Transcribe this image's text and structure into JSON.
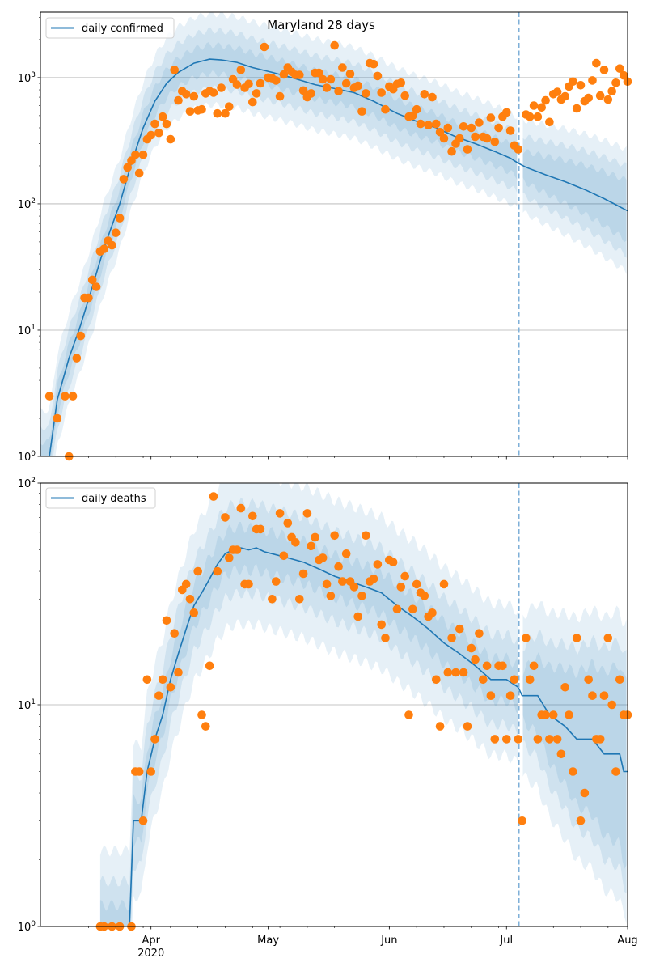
{
  "title": "Maryland 28 days",
  "colors": {
    "model_line": "#1f77b4",
    "observed_points": "#ff7f0e",
    "band_fill": "#1f77b4",
    "forecast_marker": "#7fb0d8",
    "grid": "#b0b0b0"
  },
  "x_axis": {
    "xlim": [
      0.7,
      151
    ],
    "major_ticks": [
      {
        "day": 29,
        "label": "Apr",
        "sublabel": "2020"
      },
      {
        "day": 59,
        "label": "May",
        "sublabel": ""
      },
      {
        "day": 90,
        "label": "Jun",
        "sublabel": ""
      },
      {
        "day": 120,
        "label": "Jul",
        "sublabel": ""
      },
      {
        "day": 151,
        "label": "Aug",
        "sublabel": ""
      }
    ],
    "minor_tick_start_day": 6,
    "minor_tick_step_days": 7,
    "forecast_start_day": 123.2
  },
  "chart_data": [
    {
      "type": "line+scatter",
      "title": "Maryland 28 days",
      "legend": {
        "label": "daily confirmed",
        "placement": "top-left"
      },
      "yscale": "log",
      "ylim": [
        1,
        3300
      ],
      "yticks": [
        {
          "value": 1,
          "base": "10",
          "exp": "0"
        },
        {
          "value": 10,
          "base": "10",
          "exp": "1"
        },
        {
          "value": 100,
          "base": "10",
          "exp": "2"
        },
        {
          "value": 1000,
          "base": "10",
          "exp": "3"
        }
      ],
      "show_x_labels": false,
      "grid": true,
      "model_median": [
        [
          0.7,
          1
        ],
        [
          3,
          1
        ],
        [
          5,
          2.8
        ],
        [
          8,
          6
        ],
        [
          11,
          11
        ],
        [
          14,
          22
        ],
        [
          17,
          45
        ],
        [
          21,
          100
        ],
        [
          24,
          210
        ],
        [
          27,
          400
        ],
        [
          30,
          650
        ],
        [
          33,
          900
        ],
        [
          36,
          1100
        ],
        [
          40,
          1300
        ],
        [
          44,
          1400
        ],
        [
          47,
          1380
        ],
        [
          51,
          1320
        ],
        [
          55,
          1200
        ],
        [
          60,
          1100
        ],
        [
          65,
          1000
        ],
        [
          71,
          880
        ],
        [
          76,
          820
        ],
        [
          81,
          760
        ],
        [
          86,
          650
        ],
        [
          92,
          520
        ],
        [
          97,
          450
        ],
        [
          102,
          400
        ],
        [
          107,
          340
        ],
        [
          112,
          300
        ],
        [
          117,
          260
        ],
        [
          121,
          230
        ],
        [
          123,
          210
        ],
        [
          125,
          195
        ],
        [
          130,
          170
        ],
        [
          135,
          150
        ],
        [
          140,
          130
        ],
        [
          145,
          110
        ],
        [
          151,
          88
        ]
      ],
      "band_factors": [
        2.3,
        1.7,
        1.3
      ],
      "forecast_band_growth_per_day": 0.012,
      "observed": [
        {
          "days": [
            3,
            5,
            7,
            8,
            9,
            10,
            11
          ],
          "values": [
            3,
            2,
            3,
            1,
            3,
            6,
            9
          ]
        },
        {
          "start_day": 12,
          "values": [
            18,
            18,
            25,
            22,
            42,
            44,
            51,
            47,
            59,
            77,
            157,
            194,
            220,
            245,
            175,
            245,
            325,
            350,
            430,
            365,
            490,
            430,
            325,
            1150,
            660,
            780,
            740,
            540,
            710,
            550,
            560,
            750,
            780,
            760,
            520,
            830,
            520,
            590,
            970,
            880,
            1150,
            830,
            890,
            640,
            750,
            900,
            1750,
            1000,
            990,
            950,
            710,
            1060,
            1200,
            1110,
            1050,
            1050,
            790,
            700,
            750,
            1090,
            1090,
            970,
            830,
            970,
            1800,
            780,
            1200,
            900,
            1070,
            830,
            860,
            540,
            750,
            1300,
            1280,
            1030,
            760,
            560,
            850,
            810,
            890,
            910,
            720,
            490,
            500,
            560,
            430,
            740,
            420,
            700,
            430,
            370,
            330,
            400,
            260,
            300,
            330,
            410,
            270,
            400,
            340,
            440,
            340,
            330,
            480,
            310,
            400,
            490,
            530,
            380,
            290,
            270
          ]
        },
        {
          "start_day": 125,
          "values": [
            510,
            490,
            600,
            490,
            580,
            660,
            445,
            740,
            770,
            670,
            710,
            850,
            930,
            570,
            870,
            650,
            690,
            950,
            1300,
            720,
            1150,
            670,
            780,
            910,
            1180,
            1040,
            930
          ]
        }
      ]
    },
    {
      "type": "line+scatter",
      "legend": {
        "label": "daily deaths",
        "placement": "top-left"
      },
      "yscale": "log",
      "ylim": [
        1,
        100
      ],
      "yticks": [
        {
          "value": 1,
          "base": "10",
          "exp": "0"
        },
        {
          "value": 10,
          "base": "10",
          "exp": "1"
        },
        {
          "value": 100,
          "base": "10",
          "exp": "2"
        }
      ],
      "show_x_labels": true,
      "grid": true,
      "model_median": [
        [
          16,
          1
        ],
        [
          23.5,
          1
        ],
        [
          24.5,
          3
        ],
        [
          26.5,
          3
        ],
        [
          28,
          5
        ],
        [
          30,
          7
        ],
        [
          32,
          9
        ],
        [
          34,
          13
        ],
        [
          36,
          17
        ],
        [
          38,
          22
        ],
        [
          40,
          28
        ],
        [
          42,
          32
        ],
        [
          44,
          37
        ],
        [
          46,
          43
        ],
        [
          48,
          48
        ],
        [
          50,
          50
        ],
        [
          52,
          51
        ],
        [
          54,
          50
        ],
        [
          56,
          51
        ],
        [
          58,
          49
        ],
        [
          60,
          48
        ],
        [
          64,
          46
        ],
        [
          68,
          44
        ],
        [
          72,
          41
        ],
        [
          76,
          38
        ],
        [
          80,
          36
        ],
        [
          84,
          34
        ],
        [
          88,
          32
        ],
        [
          92,
          28
        ],
        [
          96,
          25
        ],
        [
          100,
          22
        ],
        [
          104,
          19
        ],
        [
          108,
          17
        ],
        [
          112,
          15
        ],
        [
          116,
          13
        ],
        [
          120,
          13
        ],
        [
          123,
          12
        ],
        [
          124,
          11
        ],
        [
          128,
          11
        ],
        [
          131,
          9
        ],
        [
          135,
          8
        ],
        [
          138,
          7
        ],
        [
          142,
          7
        ],
        [
          145,
          6
        ],
        [
          149,
          6
        ],
        [
          150,
          5
        ],
        [
          151,
          5
        ]
      ],
      "band_factors": [
        2.2,
        1.6,
        1.25
      ],
      "forecast_band_growth_per_day": 0.04,
      "observed": [
        {
          "days": [
            16,
            17,
            19,
            21,
            24
          ],
          "values": [
            1,
            1,
            1,
            1,
            1
          ]
        },
        {
          "start_day": 25,
          "values": [
            5,
            5,
            3,
            13,
            5,
            7,
            11,
            13,
            24,
            12,
            21,
            14,
            33,
            35,
            30,
            26,
            40,
            9,
            8,
            15,
            87,
            40
          ]
        },
        {
          "start_day": 48,
          "values": [
            70,
            46,
            50,
            50,
            77,
            35,
            35,
            71,
            62,
            62
          ]
        },
        {
          "start_day": 60,
          "values": [
            30,
            36,
            73,
            47,
            66,
            57,
            54,
            30,
            39,
            73,
            52,
            57,
            45,
            46,
            35,
            31,
            58,
            42,
            36,
            48,
            36,
            34,
            25,
            31,
            58,
            36,
            37,
            43,
            23,
            20,
            45,
            44,
            27,
            34,
            38,
            9,
            27,
            35,
            32,
            31,
            25,
            26,
            13,
            8,
            35,
            14,
            20,
            14,
            22,
            14,
            8,
            18,
            16,
            21,
            13,
            15,
            11,
            7,
            15,
            15,
            7,
            11,
            13,
            7,
            3,
            20,
            13,
            15,
            7,
            9,
            9,
            7,
            9,
            7,
            6,
            12,
            9,
            5,
            20,
            3,
            4,
            13,
            11,
            7,
            7,
            11,
            20,
            10,
            5,
            13,
            9,
            9
          ]
        }
      ]
    }
  ]
}
